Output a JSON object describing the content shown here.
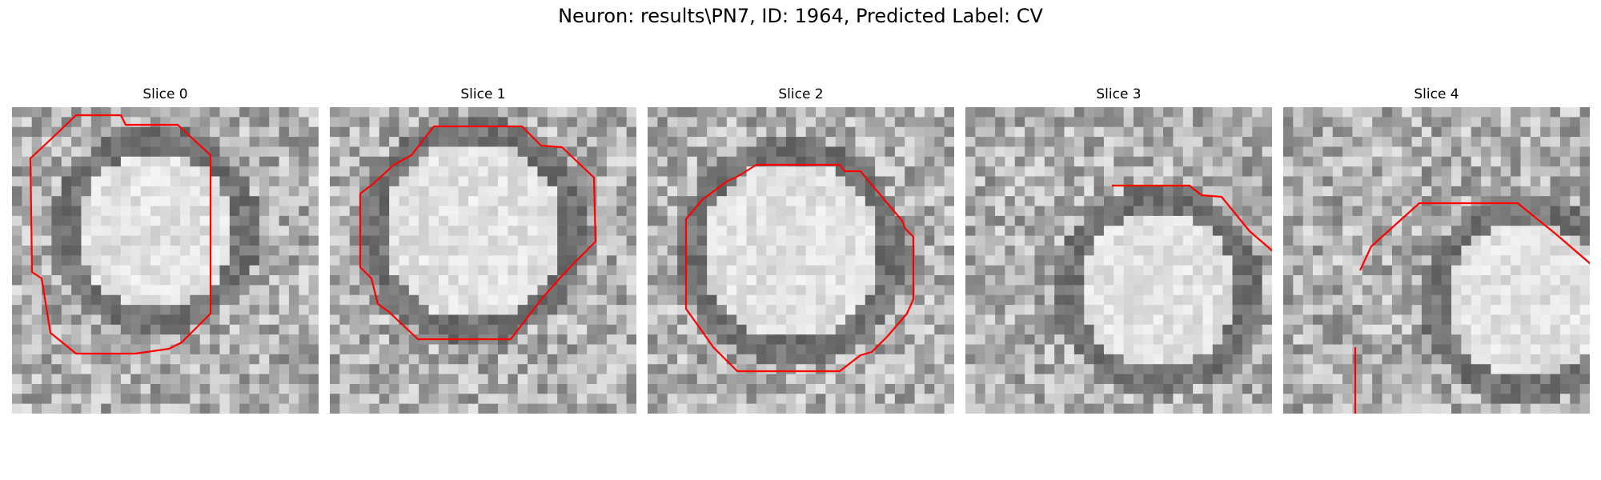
{
  "figure": {
    "title": "Neuron: results\\PN7, ID: 1964, Predicted Label: CV"
  },
  "contour_color": "#ff0000",
  "panels": [
    {
      "title": "Slice 0",
      "seed": 11,
      "blob": {
        "cx": 14,
        "cy": 12,
        "r": 9
      }
    },
    {
      "title": "Slice 1",
      "seed": 23,
      "blob": {
        "cx": 14,
        "cy": 12,
        "r": 10
      }
    },
    {
      "title": "Slice 2",
      "seed": 37,
      "blob": {
        "cx": 14,
        "cy": 14,
        "r": 10
      }
    },
    {
      "title": "Slice 3",
      "seed": 53,
      "blob": {
        "cx": 19,
        "cy": 18,
        "r": 9
      }
    },
    {
      "title": "Slice 4",
      "seed": 71,
      "blob": {
        "cx": 24,
        "cy": 19,
        "r": 9
      }
    }
  ]
}
